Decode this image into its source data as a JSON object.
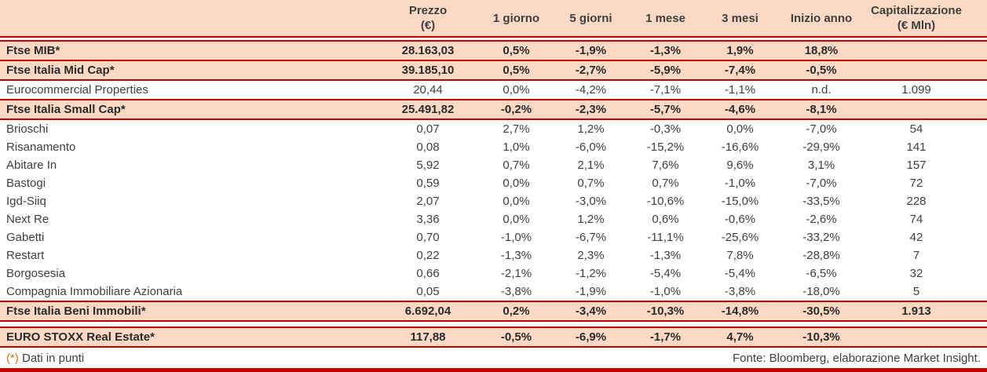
{
  "table": {
    "columns": [
      {
        "line1": ""
      },
      {
        "line1": "Prezzo",
        "line2": "(€)"
      },
      {
        "line1": "1 giorno"
      },
      {
        "line1": "5 giorni"
      },
      {
        "line1": "1 mese"
      },
      {
        "line1": "3 mesi"
      },
      {
        "line1": "Inizio anno"
      },
      {
        "line1": "Capitalizzazione",
        "line2": "(€ Mln)"
      }
    ],
    "rows": [
      {
        "name": "Ftse MIB*",
        "kind": "index",
        "bt": true,
        "values": [
          "28.163,03",
          "0,5%",
          "-1,9%",
          "-1,3%",
          "1,9%",
          "18,8%",
          ""
        ]
      },
      {
        "name": "Ftse Italia Mid Cap*",
        "kind": "index",
        "values": [
          "39.185,10",
          "0,5%",
          "-2,7%",
          "-5,9%",
          "-7,4%",
          "-0,5%",
          ""
        ]
      },
      {
        "name": "Eurocommercial Properties",
        "kind": "stock-lined",
        "values": [
          "20,44",
          "0,0%",
          "-4,2%",
          "-7,1%",
          "-1,1%",
          "n.d.",
          "1.099"
        ]
      },
      {
        "name": "Ftse Italia Small Cap*",
        "kind": "index",
        "values": [
          "25.491,82",
          "-0,2%",
          "-2,3%",
          "-5,7%",
          "-4,6%",
          "-8,1%",
          ""
        ]
      },
      {
        "name": "Brioschi",
        "kind": "stock",
        "values": [
          "0,07",
          "2,7%",
          "1,2%",
          "-0,3%",
          "0,0%",
          "-7,0%",
          "54"
        ]
      },
      {
        "name": "Risanamento",
        "kind": "stock",
        "values": [
          "0,08",
          "1,0%",
          "-6,0%",
          "-15,2%",
          "-16,6%",
          "-29,9%",
          "141"
        ]
      },
      {
        "name": "Abitare In",
        "kind": "stock",
        "values": [
          "5,92",
          "0,7%",
          "2,1%",
          "7,6%",
          "9,6%",
          "3,1%",
          "157"
        ]
      },
      {
        "name": "Bastogi",
        "kind": "stock",
        "values": [
          "0,59",
          "0,0%",
          "0,7%",
          "0,7%",
          "-1,0%",
          "-7,0%",
          "72"
        ]
      },
      {
        "name": "Igd-Siiq",
        "kind": "stock",
        "values": [
          "2,07",
          "0,0%",
          "-3,0%",
          "-10,6%",
          "-15,0%",
          "-33,5%",
          "228"
        ]
      },
      {
        "name": "Next Re",
        "kind": "stock",
        "values": [
          "3,36",
          "0,0%",
          "1,2%",
          "0,6%",
          "-0,6%",
          "-2,6%",
          "74"
        ]
      },
      {
        "name": "Gabetti",
        "kind": "stock",
        "values": [
          "0,70",
          "-1,0%",
          "-6,7%",
          "-11,1%",
          "-25,6%",
          "-33,2%",
          "42"
        ]
      },
      {
        "name": "Restart",
        "kind": "stock",
        "values": [
          "0,22",
          "-1,3%",
          "2,3%",
          "-1,3%",
          "7,8%",
          "-28,8%",
          "7"
        ]
      },
      {
        "name": "Borgosesia",
        "kind": "stock",
        "values": [
          "0,66",
          "-2,1%",
          "-1,2%",
          "-5,4%",
          "-5,4%",
          "-6,5%",
          "32"
        ]
      },
      {
        "name": "Compagnia Immobiliare Azionaria",
        "kind": "stock",
        "values": [
          "0,05",
          "-3,8%",
          "-1,9%",
          "-1,0%",
          "-3,8%",
          "-18,0%",
          "5"
        ]
      },
      {
        "name": "Ftse Italia Beni Immobili*",
        "kind": "index",
        "bt": true,
        "values": [
          "6.692,04",
          "0,2%",
          "-3,4%",
          "-10,3%",
          "-14,8%",
          "-30,5%",
          "1.913"
        ]
      },
      {
        "name": "EURO STOXX Real Estate*",
        "kind": "index",
        "bt": true,
        "gap": true,
        "values": [
          "117,88",
          "-0,5%",
          "-6,9%",
          "-1,7%",
          "4,7%",
          "-10,3%",
          ""
        ]
      }
    ]
  },
  "footer": {
    "note_star": "(*)",
    "note_text": " Dati in punti",
    "source": "Fonte: Bloomberg, elaborazione Market Insight."
  },
  "colors": {
    "accent": "#C00000",
    "highlight": "#FBD9C5",
    "text": "#3F3F3F",
    "star": "#E36C0A"
  }
}
